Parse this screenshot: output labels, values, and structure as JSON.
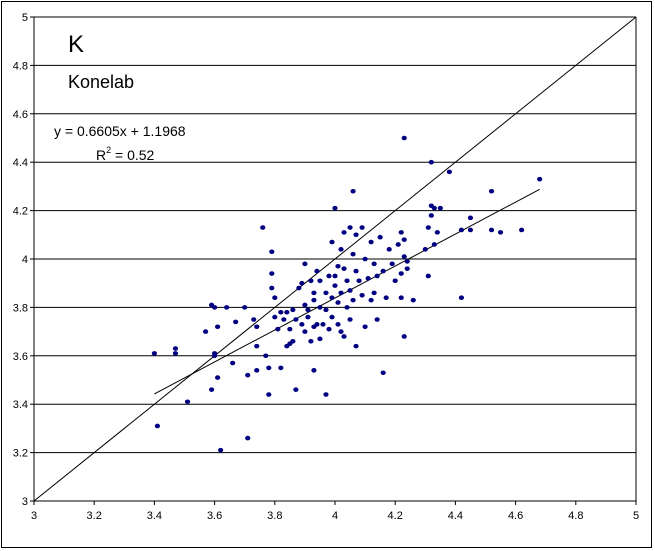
{
  "chart_data": {
    "type": "scatter",
    "title": "K",
    "subtitle": "Konelab",
    "xlim": [
      3,
      5
    ],
    "ylim": [
      3,
      5
    ],
    "x_ticks": [
      "3",
      "3.2",
      "3.4",
      "3.6",
      "3.8",
      "4",
      "4.2",
      "4.4",
      "4.6",
      "4.8",
      "5"
    ],
    "y_ticks": [
      "3",
      "3.2",
      "3.4",
      "3.6",
      "3.8",
      "4",
      "4.2",
      "4.4",
      "4.6",
      "4.8",
      "5"
    ],
    "grid": "horizontal",
    "trend_equation": "y = 0.6605x + 1.1968",
    "r2_label": "R",
    "r2_sup": "2",
    "r2_value": " = 0.52",
    "trendline": {
      "slope": 0.6605,
      "intercept": 1.1968,
      "x_range": [
        3.4,
        4.68
      ]
    },
    "identity_line": true,
    "point_color": "#000080",
    "points": [
      [
        3.4,
        3.61
      ],
      [
        3.41,
        3.31
      ],
      [
        3.47,
        3.63
      ],
      [
        3.47,
        3.61
      ],
      [
        3.51,
        3.41
      ],
      [
        3.57,
        3.7
      ],
      [
        3.59,
        3.81
      ],
      [
        3.6,
        3.8
      ],
      [
        3.6,
        3.61
      ],
      [
        3.6,
        3.6
      ],
      [
        3.59,
        3.46
      ],
      [
        3.61,
        3.72
      ],
      [
        3.61,
        3.51
      ],
      [
        3.62,
        3.21
      ],
      [
        3.64,
        3.8
      ],
      [
        3.66,
        3.57
      ],
      [
        3.67,
        3.74
      ],
      [
        3.7,
        3.8
      ],
      [
        3.71,
        3.52
      ],
      [
        3.71,
        3.26
      ],
      [
        3.73,
        3.75
      ],
      [
        3.74,
        3.72
      ],
      [
        3.74,
        3.64
      ],
      [
        3.74,
        3.54
      ],
      [
        3.76,
        4.13
      ],
      [
        3.77,
        3.6
      ],
      [
        3.78,
        3.55
      ],
      [
        3.78,
        3.44
      ],
      [
        3.79,
        4.03
      ],
      [
        3.79,
        3.94
      ],
      [
        3.79,
        3.88
      ],
      [
        3.8,
        3.84
      ],
      [
        3.8,
        3.76
      ],
      [
        3.81,
        3.71
      ],
      [
        3.82,
        3.78
      ],
      [
        3.82,
        3.55
      ],
      [
        3.83,
        3.75
      ],
      [
        3.84,
        3.78
      ],
      [
        3.84,
        3.64
      ],
      [
        3.85,
        3.71
      ],
      [
        3.85,
        3.65
      ],
      [
        3.86,
        3.79
      ],
      [
        3.86,
        3.66
      ],
      [
        3.87,
        3.75
      ],
      [
        3.87,
        3.46
      ],
      [
        3.88,
        3.88
      ],
      [
        3.89,
        3.9
      ],
      [
        3.89,
        3.73
      ],
      [
        3.9,
        3.98
      ],
      [
        3.9,
        3.81
      ],
      [
        3.9,
        3.7
      ],
      [
        3.91,
        3.79
      ],
      [
        3.91,
        3.76
      ],
      [
        3.92,
        3.91
      ],
      [
        3.92,
        3.66
      ],
      [
        3.93,
        3.86
      ],
      [
        3.93,
        3.83
      ],
      [
        3.93,
        3.72
      ],
      [
        3.93,
        3.54
      ],
      [
        3.94,
        3.95
      ],
      [
        3.94,
        3.73
      ],
      [
        3.95,
        3.91
      ],
      [
        3.95,
        3.8
      ],
      [
        3.95,
        3.67
      ],
      [
        3.96,
        3.73
      ],
      [
        3.97,
        3.86
      ],
      [
        3.97,
        3.79
      ],
      [
        3.97,
        3.44
      ],
      [
        3.98,
        3.93
      ],
      [
        3.98,
        3.71
      ],
      [
        3.99,
        4.07
      ],
      [
        3.99,
        3.84
      ],
      [
        3.99,
        3.76
      ],
      [
        4.0,
        4.21
      ],
      [
        4.0,
        3.93
      ],
      [
        4.0,
        3.89
      ],
      [
        4.01,
        3.97
      ],
      [
        4.01,
        3.82
      ],
      [
        4.01,
        3.73
      ],
      [
        4.02,
        4.04
      ],
      [
        4.02,
        3.86
      ],
      [
        4.02,
        3.7
      ],
      [
        4.03,
        4.11
      ],
      [
        4.03,
        3.96
      ],
      [
        4.03,
        3.68
      ],
      [
        4.04,
        3.91
      ],
      [
        4.04,
        3.8
      ],
      [
        4.05,
        4.13
      ],
      [
        4.05,
        3.87
      ],
      [
        4.05,
        3.75
      ],
      [
        4.06,
        4.28
      ],
      [
        4.06,
        4.02
      ],
      [
        4.06,
        3.83
      ],
      [
        4.07,
        4.1
      ],
      [
        4.07,
        3.95
      ],
      [
        4.07,
        3.64
      ],
      [
        4.08,
        3.91
      ],
      [
        4.09,
        4.13
      ],
      [
        4.09,
        3.85
      ],
      [
        4.1,
        4.0
      ],
      [
        4.1,
        3.72
      ],
      [
        4.11,
        3.92
      ],
      [
        4.12,
        4.07
      ],
      [
        4.12,
        3.83
      ],
      [
        4.13,
        3.98
      ],
      [
        4.13,
        3.86
      ],
      [
        4.14,
        3.93
      ],
      [
        4.14,
        3.75
      ],
      [
        4.15,
        4.09
      ],
      [
        4.16,
        3.95
      ],
      [
        4.16,
        3.53
      ],
      [
        4.17,
        3.84
      ],
      [
        4.18,
        4.04
      ],
      [
        4.19,
        3.98
      ],
      [
        4.2,
        3.91
      ],
      [
        4.21,
        4.06
      ],
      [
        4.22,
        4.11
      ],
      [
        4.22,
        3.94
      ],
      [
        4.22,
        3.84
      ],
      [
        4.23,
        4.5
      ],
      [
        4.23,
        4.08
      ],
      [
        4.23,
        4.01
      ],
      [
        4.23,
        3.68
      ],
      [
        4.24,
        3.99
      ],
      [
        4.24,
        3.96
      ],
      [
        4.26,
        3.83
      ],
      [
        4.3,
        4.04
      ],
      [
        4.31,
        4.13
      ],
      [
        4.31,
        3.93
      ],
      [
        4.32,
        4.22
      ],
      [
        4.32,
        4.18
      ],
      [
        4.32,
        4.4
      ],
      [
        4.33,
        4.06
      ],
      [
        4.33,
        4.21
      ],
      [
        4.34,
        4.11
      ],
      [
        4.35,
        4.21
      ],
      [
        4.38,
        4.36
      ],
      [
        4.42,
        4.12
      ],
      [
        4.42,
        3.84
      ],
      [
        4.45,
        4.17
      ],
      [
        4.45,
        4.12
      ],
      [
        4.52,
        4.28
      ],
      [
        4.52,
        4.12
      ],
      [
        4.55,
        4.11
      ],
      [
        4.62,
        4.12
      ],
      [
        4.68,
        4.33
      ]
    ]
  }
}
